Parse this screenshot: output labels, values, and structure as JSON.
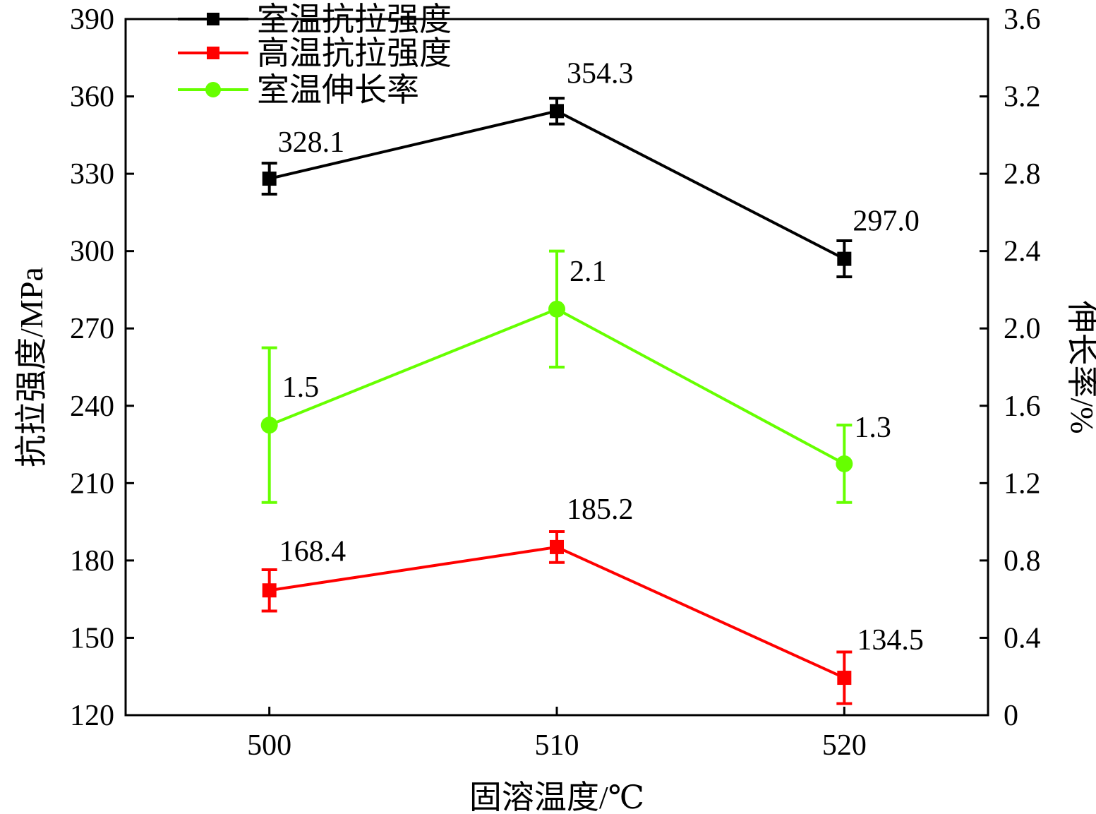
{
  "chart_data": {
    "type": "line",
    "title": "",
    "xlabel": "固溶温度/℃",
    "ylabel_left": "抗拉强度/MPa",
    "ylabel_right": "伸长率/%",
    "x": [
      500,
      510,
      520
    ],
    "x_tick_labels": [
      "500",
      "510",
      "520"
    ],
    "xlim": [
      495,
      525
    ],
    "ylim_left": [
      120,
      390
    ],
    "ylim_right": [
      0,
      3.6
    ],
    "y_left_ticks": [
      "120",
      "150",
      "180",
      "210",
      "240",
      "270",
      "300",
      "330",
      "360",
      "390"
    ],
    "y_right_ticks": [
      "0",
      "0.4",
      "0.8",
      "1.2",
      "1.6",
      "2.0",
      "2.4",
      "2.8",
      "3.2",
      "3.6"
    ],
    "grid": false,
    "legend_position": "top-left",
    "series": [
      {
        "name": "室温抗拉强度",
        "axis": "left",
        "marker": "square",
        "color": "#000000",
        "values": [
          328.1,
          354.3,
          297.0
        ],
        "labels": [
          "328.1",
          "354.3",
          "297.0"
        ],
        "error": [
          6,
          5,
          7
        ]
      },
      {
        "name": "高温抗拉强度",
        "axis": "left",
        "marker": "square",
        "color": "#ff0000",
        "values": [
          168.4,
          185.2,
          134.5
        ],
        "labels": [
          "168.4",
          "185.2",
          "134.5"
        ],
        "error": [
          8,
          6,
          10
        ]
      },
      {
        "name": "室温伸长率",
        "axis": "right",
        "marker": "circle",
        "color": "#66ff00",
        "values": [
          1.5,
          2.1,
          1.3
        ],
        "labels": [
          "1.5",
          "2.1",
          "1.3"
        ],
        "error": [
          0.4,
          0.3,
          0.2
        ]
      }
    ]
  }
}
